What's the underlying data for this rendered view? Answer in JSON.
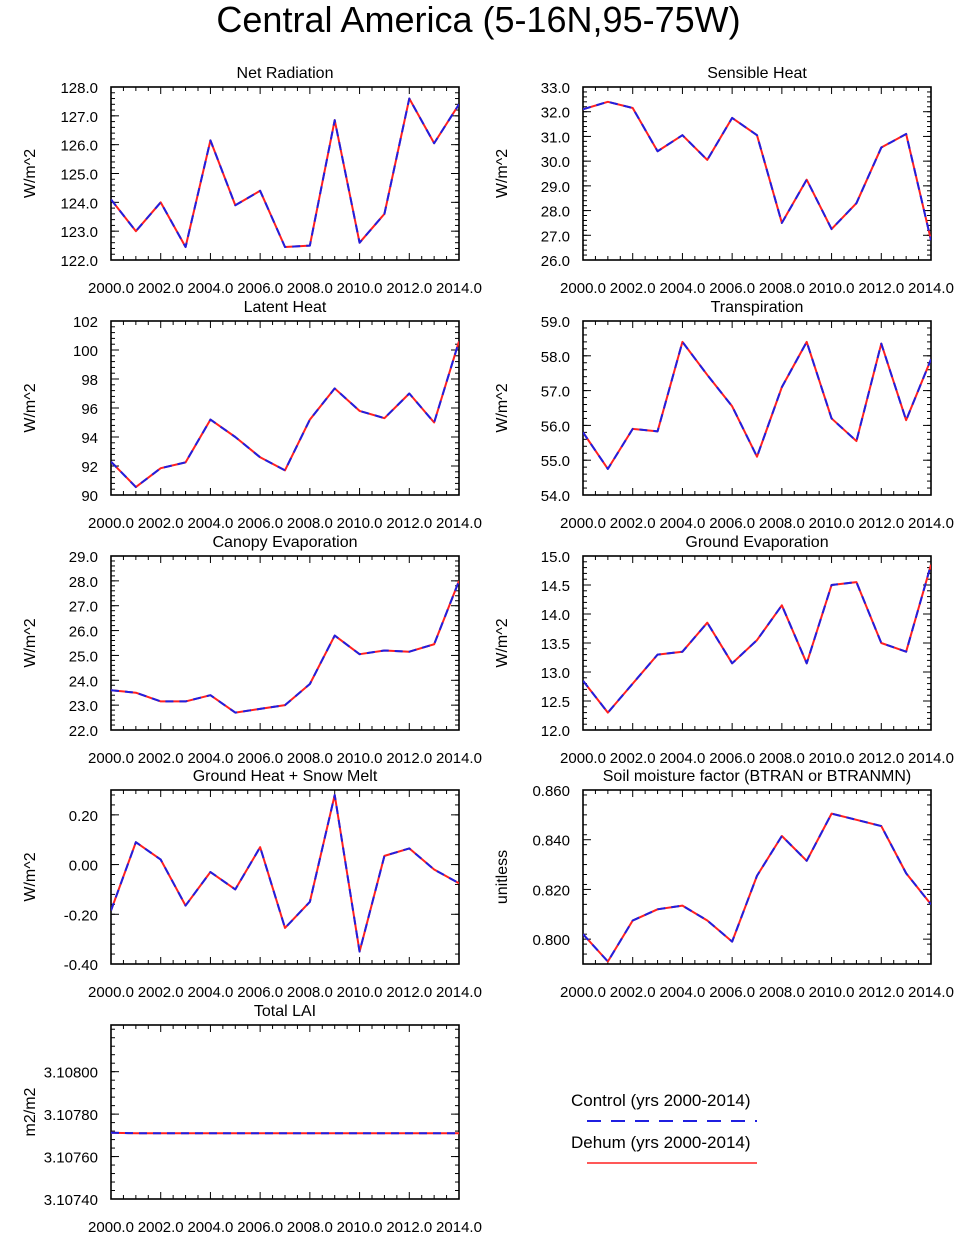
{
  "title": "Central America (5-16N,95-75W)",
  "colors": {
    "control": "#1f1fe0",
    "dehum": "#ff2020",
    "axis": "#000000"
  },
  "legend": {
    "control": "Control (yrs 2000-2014)",
    "dehum": "Dehum (yrs 2000-2014)"
  },
  "chart_data": [
    {
      "type": "line",
      "title": "Net Radiation",
      "ylabel": "W/m^2",
      "ylim": [
        122.0,
        128.0
      ],
      "yticks": [
        122.0,
        123.0,
        124.0,
        125.0,
        126.0,
        127.0,
        128.0
      ],
      "ytick_labels": [
        "122.0",
        "123.0",
        "124.0",
        "125.0",
        "126.0",
        "127.0",
        "128.0"
      ],
      "xlim": [
        2000,
        2014
      ],
      "xtick_labels": [
        "2000.0",
        "2002.0",
        "2004.0",
        "2006.0",
        "2008.0",
        "2010.0",
        "2012.0",
        "2014.0"
      ],
      "x": [
        2000,
        2001,
        2002,
        2003,
        2004,
        2005,
        2006,
        2007,
        2008,
        2009,
        2010,
        2011,
        2012,
        2013,
        2014
      ],
      "series": [
        {
          "name": "Control (yrs 2000-2014)",
          "values": [
            124.1,
            123.0,
            124.0,
            122.45,
            126.15,
            123.9,
            124.4,
            122.45,
            122.5,
            126.85,
            122.6,
            123.6,
            127.6,
            126.05,
            127.4
          ]
        },
        {
          "name": "Dehum (yrs 2000-2014)",
          "values": [
            124.1,
            123.0,
            124.0,
            122.45,
            126.15,
            123.9,
            124.4,
            122.45,
            122.5,
            126.85,
            122.6,
            123.6,
            127.6,
            126.05,
            127.4
          ]
        }
      ]
    },
    {
      "type": "line",
      "title": "Sensible Heat",
      "ylabel": "W/m^2",
      "ylim": [
        26.0,
        33.0
      ],
      "yticks": [
        26.0,
        27.0,
        28.0,
        29.0,
        30.0,
        31.0,
        32.0,
        33.0
      ],
      "ytick_labels": [
        "26.0",
        "27.0",
        "28.0",
        "29.0",
        "30.0",
        "31.0",
        "32.0",
        "33.0"
      ],
      "xlim": [
        2000,
        2014
      ],
      "xtick_labels": [
        "2000.0",
        "2002.0",
        "2004.0",
        "2006.0",
        "2008.0",
        "2010.0",
        "2012.0",
        "2014.0"
      ],
      "x": [
        2000,
        2001,
        2002,
        2003,
        2004,
        2005,
        2006,
        2007,
        2008,
        2009,
        2010,
        2011,
        2012,
        2013,
        2014
      ],
      "series": [
        {
          "name": "Control (yrs 2000-2014)",
          "values": [
            32.1,
            32.4,
            32.15,
            30.4,
            31.05,
            30.05,
            31.75,
            31.05,
            27.5,
            29.25,
            27.25,
            28.3,
            30.55,
            31.1,
            26.8
          ]
        },
        {
          "name": "Dehum (yrs 2000-2014)",
          "values": [
            32.1,
            32.4,
            32.15,
            30.4,
            31.05,
            30.05,
            31.75,
            31.05,
            27.5,
            29.25,
            27.25,
            28.3,
            30.55,
            31.1,
            26.8
          ]
        }
      ]
    },
    {
      "type": "line",
      "title": "Latent Heat",
      "ylabel": "W/m^2",
      "ylim": [
        90,
        102
      ],
      "yticks": [
        90,
        92,
        94,
        96,
        98,
        100,
        102
      ],
      "ytick_labels": [
        "90",
        "92",
        "94",
        "96",
        "98",
        "100",
        "102"
      ],
      "xlim": [
        2000,
        2014
      ],
      "xtick_labels": [
        "2000.0",
        "2002.0",
        "2004.0",
        "2006.0",
        "2008.0",
        "2010.0",
        "2012.0",
        "2014.0"
      ],
      "x": [
        2000,
        2001,
        2002,
        2003,
        2004,
        2005,
        2006,
        2007,
        2008,
        2009,
        2010,
        2011,
        2012,
        2013,
        2014
      ],
      "series": [
        {
          "name": "Control (yrs 2000-2014)",
          "values": [
            92.3,
            90.55,
            91.85,
            92.25,
            95.2,
            94.0,
            92.6,
            91.7,
            95.2,
            97.35,
            95.8,
            95.3,
            97.0,
            95.0,
            100.6
          ]
        },
        {
          "name": "Dehum (yrs 2000-2014)",
          "values": [
            92.3,
            90.55,
            91.85,
            92.25,
            95.2,
            94.0,
            92.6,
            91.7,
            95.2,
            97.35,
            95.8,
            95.3,
            97.0,
            95.0,
            100.6
          ]
        }
      ]
    },
    {
      "type": "line",
      "title": "Transpiration",
      "ylabel": "W/m^2",
      "ylim": [
        54.0,
        59.0
      ],
      "yticks": [
        54.0,
        55.0,
        56.0,
        57.0,
        58.0,
        59.0
      ],
      "ytick_labels": [
        "54.0",
        "55.0",
        "56.0",
        "57.0",
        "58.0",
        "59.0"
      ],
      "xlim": [
        2000,
        2014
      ],
      "xtick_labels": [
        "2000.0",
        "2002.0",
        "2004.0",
        "2006.0",
        "2008.0",
        "2010.0",
        "2012.0",
        "2014.0"
      ],
      "x": [
        2000,
        2001,
        2002,
        2003,
        2004,
        2005,
        2006,
        2007,
        2008,
        2009,
        2010,
        2011,
        2012,
        2013,
        2014
      ],
      "series": [
        {
          "name": "Control (yrs 2000-2014)",
          "values": [
            55.8,
            54.75,
            55.9,
            55.83,
            58.4,
            57.45,
            56.55,
            55.1,
            57.1,
            58.4,
            56.2,
            55.55,
            58.35,
            56.15,
            57.9
          ]
        },
        {
          "name": "Dehum (yrs 2000-2014)",
          "values": [
            55.8,
            54.75,
            55.9,
            55.83,
            58.4,
            57.45,
            56.55,
            55.1,
            57.1,
            58.4,
            56.2,
            55.55,
            58.35,
            56.15,
            57.9
          ]
        }
      ]
    },
    {
      "type": "line",
      "title": "Canopy Evaporation",
      "ylabel": "W/m^2",
      "ylim": [
        22.0,
        29.0
      ],
      "yticks": [
        22.0,
        23.0,
        24.0,
        25.0,
        26.0,
        27.0,
        28.0,
        29.0
      ],
      "ytick_labels": [
        "22.0",
        "23.0",
        "24.0",
        "25.0",
        "26.0",
        "27.0",
        "28.0",
        "29.0"
      ],
      "xlim": [
        2000,
        2014
      ],
      "xtick_labels": [
        "2000.0",
        "2002.0",
        "2004.0",
        "2006.0",
        "2008.0",
        "2010.0",
        "2012.0",
        "2014.0"
      ],
      "x": [
        2000,
        2001,
        2002,
        2003,
        2004,
        2005,
        2006,
        2007,
        2008,
        2009,
        2010,
        2011,
        2012,
        2013,
        2014
      ],
      "series": [
        {
          "name": "Control (yrs 2000-2014)",
          "values": [
            23.6,
            23.5,
            23.15,
            23.15,
            23.4,
            22.7,
            22.85,
            23.0,
            23.85,
            25.8,
            25.05,
            25.2,
            25.15,
            25.45,
            28.0
          ]
        },
        {
          "name": "Dehum (yrs 2000-2014)",
          "values": [
            23.6,
            23.5,
            23.15,
            23.15,
            23.4,
            22.7,
            22.85,
            23.0,
            23.85,
            25.8,
            25.05,
            25.2,
            25.15,
            25.45,
            28.0
          ]
        }
      ]
    },
    {
      "type": "line",
      "title": "Ground Evaporation",
      "ylabel": "W/m^2",
      "ylim": [
        12.0,
        15.0
      ],
      "yticks": [
        12.0,
        12.5,
        13.0,
        13.5,
        14.0,
        14.5,
        15.0
      ],
      "ytick_labels": [
        "12.0",
        "12.5",
        "13.0",
        "13.5",
        "14.0",
        "14.5",
        "15.0"
      ],
      "xlim": [
        2000,
        2014
      ],
      "xtick_labels": [
        "2000.0",
        "2002.0",
        "2004.0",
        "2006.0",
        "2008.0",
        "2010.0",
        "2012.0",
        "2014.0"
      ],
      "x": [
        2000,
        2001,
        2002,
        2003,
        2004,
        2005,
        2006,
        2007,
        2008,
        2009,
        2010,
        2011,
        2012,
        2013,
        2014
      ],
      "series": [
        {
          "name": "Control (yrs 2000-2014)",
          "values": [
            12.85,
            12.3,
            12.8,
            13.3,
            13.35,
            13.85,
            13.15,
            13.55,
            14.15,
            13.15,
            14.5,
            14.55,
            13.5,
            13.35,
            14.85
          ]
        },
        {
          "name": "Dehum (yrs 2000-2014)",
          "values": [
            12.85,
            12.3,
            12.8,
            13.3,
            13.35,
            13.85,
            13.15,
            13.55,
            14.15,
            13.15,
            14.5,
            14.55,
            13.5,
            13.35,
            14.85
          ]
        }
      ]
    },
    {
      "type": "line",
      "title": "Ground Heat + Snow Melt",
      "ylabel": "W/m^2",
      "ylim": [
        -0.4,
        0.3
      ],
      "yticks": [
        -0.4,
        -0.2,
        0.0,
        0.2
      ],
      "ytick_labels": [
        "-0.40",
        "-0.20",
        "0.00",
        "0.20"
      ],
      "xlim": [
        2000,
        2014
      ],
      "xtick_labels": [
        "2000.0",
        "2002.0",
        "2004.0",
        "2006.0",
        "2008.0",
        "2010.0",
        "2012.0",
        "2014.0"
      ],
      "x": [
        2000,
        2001,
        2002,
        2003,
        2004,
        2005,
        2006,
        2007,
        2008,
        2009,
        2010,
        2011,
        2012,
        2013,
        2014
      ],
      "series": [
        {
          "name": "Control (yrs 2000-2014)",
          "values": [
            -0.185,
            0.09,
            0.02,
            -0.165,
            -0.03,
            -0.1,
            0.07,
            -0.255,
            -0.15,
            0.28,
            -0.35,
            0.035,
            0.065,
            -0.02,
            -0.075
          ]
        },
        {
          "name": "Dehum (yrs 2000-2014)",
          "values": [
            -0.185,
            0.09,
            0.02,
            -0.165,
            -0.03,
            -0.1,
            0.07,
            -0.255,
            -0.15,
            0.28,
            -0.35,
            0.035,
            0.065,
            -0.02,
            -0.075
          ]
        }
      ]
    },
    {
      "type": "line",
      "title": "Soil moisture factor (BTRAN or BTRANMN)",
      "ylabel": "unitless",
      "ylim": [
        0.79,
        0.86
      ],
      "yticks": [
        0.8,
        0.82,
        0.84,
        0.86
      ],
      "ytick_labels": [
        "0.800",
        "0.820",
        "0.840",
        "0.860"
      ],
      "xlim": [
        2000,
        2014
      ],
      "xtick_labels": [
        "2000.0",
        "2002.0",
        "2004.0",
        "2006.0",
        "2008.0",
        "2010.0",
        "2012.0",
        "2014.0"
      ],
      "x": [
        2000,
        2001,
        2002,
        2003,
        2004,
        2005,
        2006,
        2007,
        2008,
        2009,
        2010,
        2011,
        2012,
        2013,
        2014
      ],
      "series": [
        {
          "name": "Control (yrs 2000-2014)",
          "values": [
            0.802,
            0.791,
            0.8075,
            0.812,
            0.8135,
            0.8075,
            0.799,
            0.8255,
            0.8415,
            0.8315,
            0.8505,
            0.848,
            0.8455,
            0.8265,
            0.814
          ]
        },
        {
          "name": "Dehum (yrs 2000-2014)",
          "values": [
            0.802,
            0.791,
            0.8075,
            0.812,
            0.8135,
            0.8075,
            0.799,
            0.8255,
            0.8415,
            0.8315,
            0.8505,
            0.848,
            0.8455,
            0.8265,
            0.814
          ]
        }
      ]
    },
    {
      "type": "line",
      "title": "Total LAI",
      "ylabel": "m2/m2",
      "ylim": [
        3.1074,
        3.10822
      ],
      "yticks": [
        3.1074,
        3.1076,
        3.1078,
        3.108
      ],
      "ytick_labels": [
        "3.10740",
        "3.10760",
        "3.10780",
        "3.10800"
      ],
      "xlim": [
        2000,
        2014
      ],
      "xtick_labels": [
        "2000.0",
        "2002.0",
        "2004.0",
        "2006.0",
        "2008.0",
        "2010.0",
        "2012.0",
        "2014.0"
      ],
      "x": [
        2000,
        2001,
        2002,
        2003,
        2004,
        2005,
        2006,
        2007,
        2008,
        2009,
        2010,
        2011,
        2012,
        2013,
        2014
      ],
      "series": [
        {
          "name": "Control (yrs 2000-2014)",
          "values": [
            3.107712,
            3.10771,
            3.10771,
            3.10771,
            3.10771,
            3.10771,
            3.10771,
            3.10771,
            3.10771,
            3.10771,
            3.10771,
            3.10771,
            3.10771,
            3.10771,
            3.10771
          ]
        },
        {
          "name": "Dehum (yrs 2000-2014)",
          "values": [
            3.107712,
            3.10771,
            3.10771,
            3.10771,
            3.10771,
            3.10771,
            3.10771,
            3.10771,
            3.10771,
            3.10771,
            3.10771,
            3.10771,
            3.10771,
            3.10771,
            3.10771
          ]
        }
      ]
    }
  ]
}
